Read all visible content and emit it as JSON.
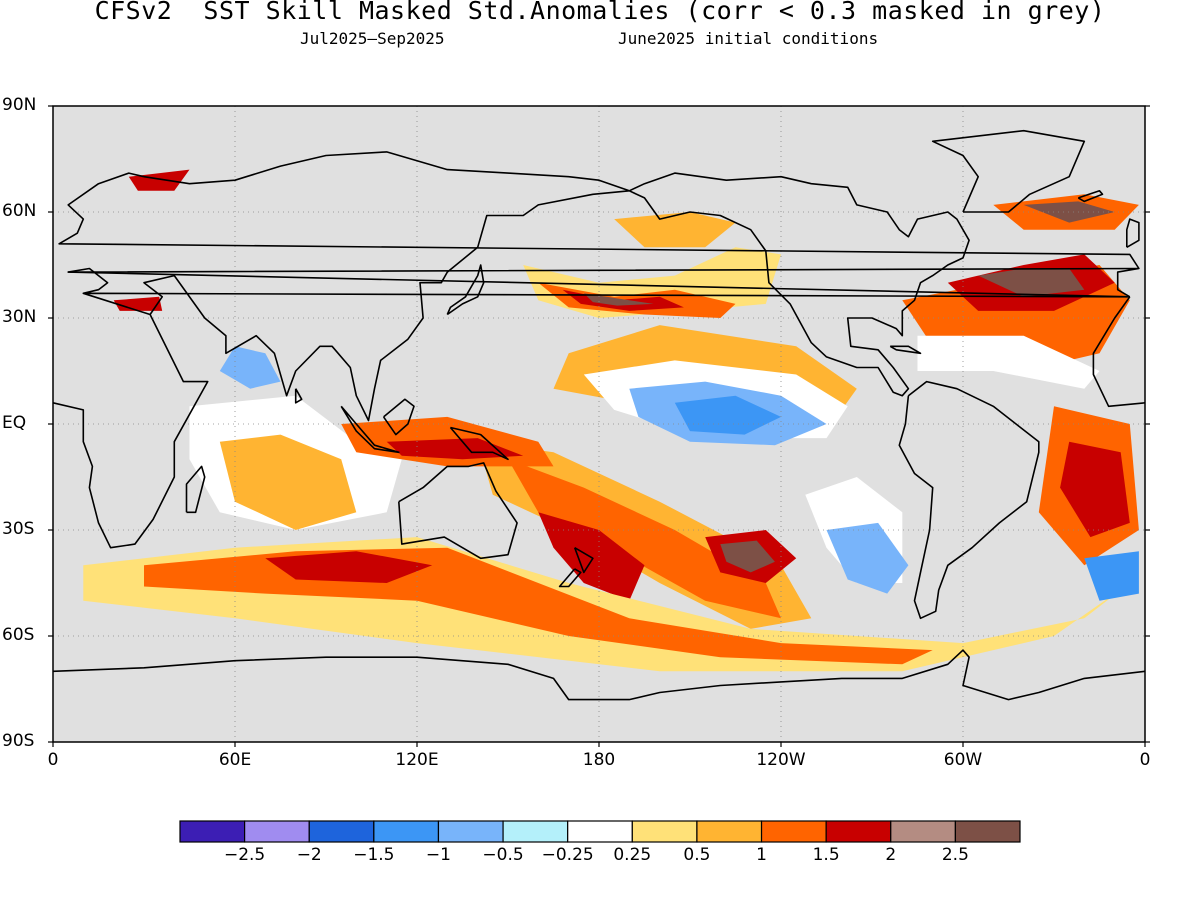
{
  "title": "CFSv2  SST Skill Masked Std.Anomalies (corr < 0.3 masked in grey)",
  "subtitle_period": "Jul2025–Sep2025",
  "subtitle_ic": "June2025 initial conditions",
  "map": {
    "projection": "equirectangular",
    "mask_color": "#e0e0e0",
    "land_color": "#e0e0e0",
    "coastline_color": "#000000",
    "grid": true,
    "lat_labels": [
      "90N",
      "60N",
      "30N",
      "EQ",
      "30S",
      "60S",
      "90S"
    ],
    "lon_labels": [
      "0",
      "60E",
      "120E",
      "180",
      "120W",
      "60W",
      "0"
    ],
    "lat_values": [
      90,
      60,
      30,
      0,
      -30,
      -60,
      -90
    ],
    "lon_values": [
      0,
      60,
      120,
      180,
      240,
      300,
      360
    ]
  },
  "colorbar": {
    "colors": [
      "#3c1eb4",
      "#a08cf0",
      "#1e64dc",
      "#3c96f5",
      "#78b4fa",
      "#b4f0fa",
      "#ffffff",
      "#ffe178",
      "#ffb432",
      "#ff6400",
      "#c80000",
      "#b48c82",
      "#7d5046"
    ],
    "labels": [
      "−2.5",
      "−2",
      "−1.5",
      "−1",
      "−0.5",
      "−0.25",
      "0.25",
      "0.5",
      "1",
      "1.5",
      "2",
      "2.5"
    ]
  }
}
